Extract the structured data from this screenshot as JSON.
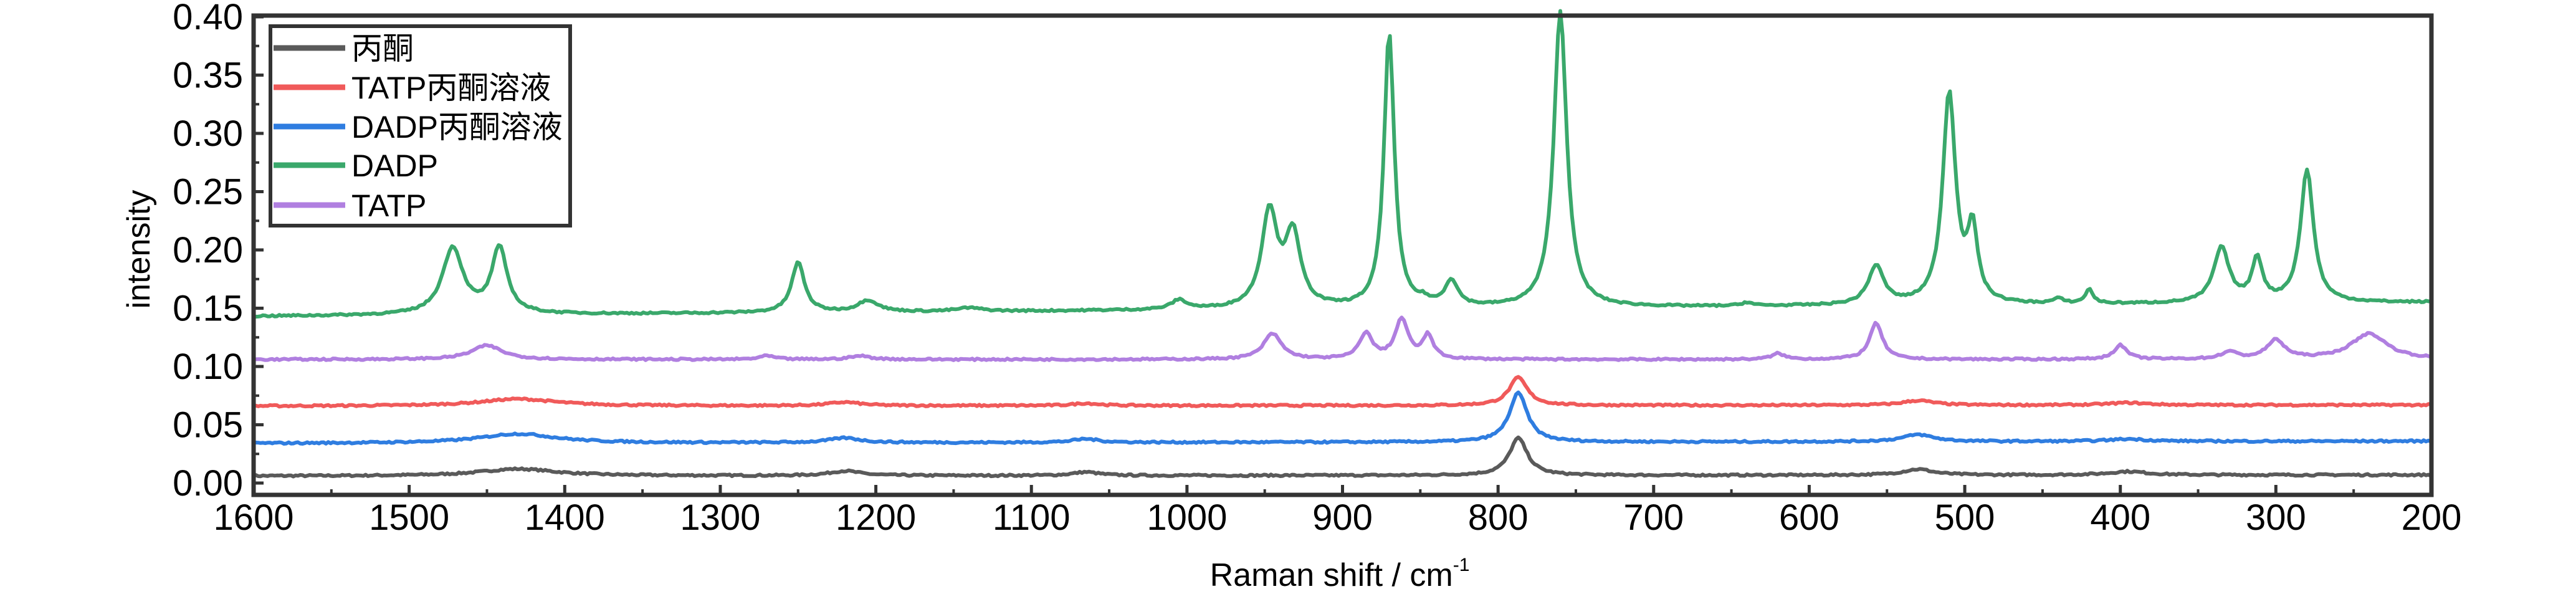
{
  "chart_data": {
    "type": "line",
    "title": "",
    "xlabel": "Raman shift / cm",
    "xlabel_superscript": "-1",
    "ylabel": "intensity",
    "xlim": [
      1600,
      200
    ],
    "ylim": [
      0.0,
      0.4
    ],
    "x_reversed": true,
    "grid": false,
    "legend_placement": "top-left",
    "xticks": [
      "1600",
      "1500",
      "1400",
      "1300",
      "1200",
      "1100",
      "1000",
      "900",
      "800",
      "700",
      "600",
      "500",
      "400",
      "300",
      "200"
    ],
    "yticks": [
      "0.00",
      "0.05",
      "0.10",
      "0.15",
      "0.20",
      "0.25",
      "0.30",
      "0.35",
      "0.40"
    ],
    "series": [
      {
        "name": "丙酮",
        "color": "#5a5a5a",
        "baseline": [
          0.006,
          0.007
        ],
        "peaks": [
          [
            1430,
            0.006,
            30
          ],
          [
            1220,
            0.004,
            12
          ],
          [
            1065,
            0.003,
            10
          ],
          [
            787,
            0.032,
            7
          ],
          [
            530,
            0.005,
            12
          ],
          [
            395,
            0.003,
            15
          ]
        ]
      },
      {
        "name": "TATP丙酮溶液",
        "color": "#f05a5a",
        "baseline": [
          0.066,
          0.067
        ],
        "peaks": [
          [
            1430,
            0.006,
            30
          ],
          [
            1220,
            0.003,
            12
          ],
          [
            1065,
            0.002,
            10
          ],
          [
            787,
            0.024,
            7
          ],
          [
            530,
            0.004,
            12
          ],
          [
            395,
            0.002,
            15
          ]
        ]
      },
      {
        "name": "DADP丙酮溶液",
        "color": "#2f7de0",
        "baseline": [
          0.034,
          0.036
        ],
        "peaks": [
          [
            1430,
            0.008,
            30
          ],
          [
            1220,
            0.004,
            12
          ],
          [
            1065,
            0.003,
            10
          ],
          [
            787,
            0.042,
            7
          ],
          [
            530,
            0.006,
            12
          ],
          [
            395,
            0.002,
            15
          ]
        ]
      },
      {
        "name": "DADP",
        "color": "#3aa86b",
        "baseline": [
          0.143,
          0.155
        ],
        "peaks": [
          [
            1472,
            0.057,
            8
          ],
          [
            1442,
            0.056,
            6
          ],
          [
            1250,
            0.043,
            5
          ],
          [
            1205,
            0.01,
            8
          ],
          [
            1140,
            0.003,
            10
          ],
          [
            1005,
            0.008,
            6
          ],
          [
            947,
            0.082,
            6
          ],
          [
            932,
            0.062,
            6
          ],
          [
            870,
            0.236,
            4
          ],
          [
            848,
            0.004,
            4
          ],
          [
            830,
            0.022,
            5
          ],
          [
            760,
            0.254,
            5
          ],
          [
            640,
            0.003,
            4
          ],
          [
            557,
            0.033,
            6
          ],
          [
            510,
            0.181,
            5
          ],
          [
            495,
            0.06,
            4
          ],
          [
            440,
            0.004,
            4
          ],
          [
            420,
            0.012,
            3
          ],
          [
            335,
            0.047,
            6
          ],
          [
            312,
            0.037,
            4
          ],
          [
            280,
            0.114,
            5
          ]
        ]
      },
      {
        "name": "TATP",
        "color": "#b07fe0",
        "baseline": [
          0.106,
          0.106
        ],
        "peaks": [
          [
            1450,
            0.012,
            12
          ],
          [
            1270,
            0.003,
            6
          ],
          [
            1210,
            0.003,
            8
          ],
          [
            945,
            0.022,
            7
          ],
          [
            885,
            0.022,
            5
          ],
          [
            862,
            0.034,
            5
          ],
          [
            845,
            0.02,
            4
          ],
          [
            620,
            0.005,
            5
          ],
          [
            557,
            0.031,
            5
          ],
          [
            400,
            0.012,
            5
          ],
          [
            330,
            0.006,
            6
          ],
          [
            300,
            0.016,
            7
          ],
          [
            240,
            0.022,
            14
          ]
        ]
      }
    ]
  }
}
